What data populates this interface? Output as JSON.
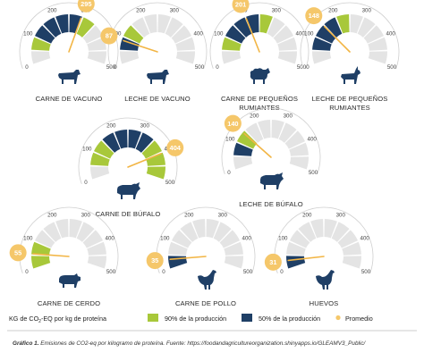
{
  "colors": {
    "ring_50": "#1f3f66",
    "ring_90": "#a8c83a",
    "ring_bg": "#e4e4e4",
    "average": "#f5c76a",
    "needle": "#f2b544",
    "animal": "#1f3f66",
    "outer_arc": "#cfcfcf"
  },
  "chart_data": {
    "type": "gauge",
    "scale": {
      "min": 0,
      "max": 500,
      "ticks": [
        0,
        100,
        200,
        300,
        400,
        500
      ]
    },
    "gauges": [
      {
        "label": [
          "CARNE DE VACUNO"
        ],
        "average": 295,
        "p50": [
          100,
          300
        ],
        "p90": [
          50,
          360
        ],
        "animal": "cow-icon"
      },
      {
        "label": [
          "LECHE DE VACUNO"
        ],
        "average": 87,
        "p50": [
          75,
          95
        ],
        "p90": [
          55,
          165
        ],
        "animal": "cow-icon"
      },
      {
        "label": [
          "CARNE DE PEQUEÑOS",
          "RUMIANTES"
        ],
        "average": 201,
        "p50": [
          80,
          235
        ],
        "p90": [
          45,
          300
        ],
        "animal": "sheep-icon"
      },
      {
        "label": [
          "LECHE DE PEQUEÑOS",
          "RUMIANTES"
        ],
        "average": 148,
        "p50": [
          70,
          180
        ],
        "p90": [
          45,
          260
        ],
        "animal": "goat-icon"
      },
      {
        "label": [
          "CARNE DE BÚFALO"
        ],
        "average": 404,
        "p50": [
          130,
          330
        ],
        "p90": [
          40,
          500
        ],
        "animal": "buffalo-icon"
      },
      {
        "label": [
          "LECHE DE BÚFALO"
        ],
        "average": 140,
        "p50": [
          60,
          95
        ],
        "p90": [
          35,
          145
        ],
        "animal": "buffalo-icon"
      },
      {
        "label": [
          "CARNE DE CERDO"
        ],
        "average": 55,
        "p50": [
          28,
          55
        ],
        "p90": [
          15,
          95
        ],
        "animal": "pig-icon"
      },
      {
        "label": [
          "CARNE DE POLLO"
        ],
        "average": 35,
        "p50": [
          22,
          48
        ],
        "p90": [
          12,
          65
        ],
        "animal": "chicken-icon"
      },
      {
        "label": [
          "HUEVOS"
        ],
        "average": 31,
        "p50": [
          20,
          40
        ],
        "p90": [
          12,
          58
        ],
        "animal": "chicken-icon"
      }
    ]
  },
  "legend": {
    "unit_prefix": "KG de CO",
    "unit_sub": "2",
    "unit_suffix": "-EQ por kg de proteína",
    "p90_label": "90% de la producción",
    "p50_label": "50% de la producción",
    "avg_label": "Promedio"
  },
  "caption": {
    "bold": "Gráfico 1.",
    "text": " Emisiones de CO2-eq por kilogramo de proteína. Fuente: https://foodandagricultureorganization.shinyapps.io/GLEAMV3_Public/"
  }
}
